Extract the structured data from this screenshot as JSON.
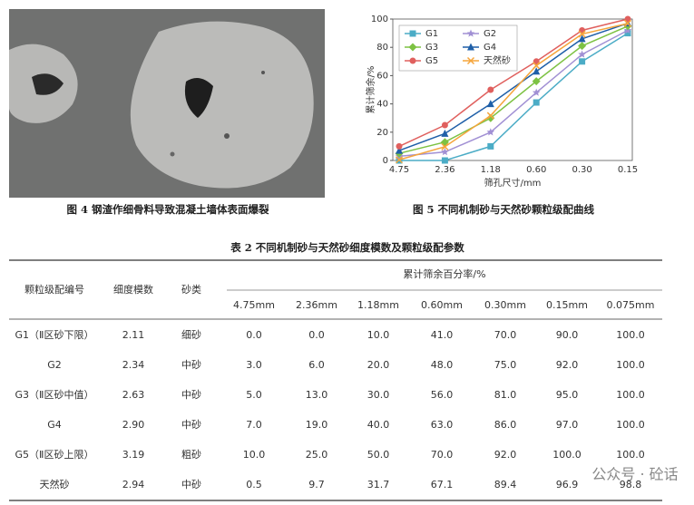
{
  "figure4": {
    "caption": "图 4  钢渣作细骨料导致混凝土墙体表面爆裂"
  },
  "chart_data": {
    "type": "line",
    "caption": "图 5  不同机制砂与天然砂颗粒级配曲线",
    "x_label": "筛孔尺寸/mm",
    "y_label": "累计筛余/%",
    "categories": [
      "4.75",
      "2.36",
      "1.18",
      "0.60",
      "0.30",
      "0.15"
    ],
    "ylim": [
      0,
      100
    ],
    "yticks": [
      0,
      20,
      40,
      60,
      80,
      100
    ],
    "legend": "upper-left",
    "series": [
      {
        "name": "G1",
        "color": "#4bacc6",
        "marker": "square",
        "values": [
          0,
          0,
          10,
          41,
          70,
          90
        ]
      },
      {
        "name": "G2",
        "color": "#a190d4",
        "marker": "star",
        "values": [
          3,
          6,
          20,
          48,
          75,
          92
        ]
      },
      {
        "name": "G3",
        "color": "#7dc243",
        "marker": "diamond",
        "values": [
          5,
          13,
          30,
          56,
          81,
          95
        ]
      },
      {
        "name": "G4",
        "color": "#1f5fa8",
        "marker": "triangle",
        "values": [
          7,
          19,
          40,
          63,
          86,
          97
        ]
      },
      {
        "name": "G5",
        "color": "#e0605e",
        "marker": "circle",
        "values": [
          10,
          25,
          50,
          70,
          92,
          100
        ]
      },
      {
        "name": "天然砂",
        "color": "#f5a53c",
        "marker": "x",
        "values": [
          0.5,
          9.7,
          31.7,
          67.1,
          89.4,
          96.9
        ]
      }
    ]
  },
  "table": {
    "title": "表 2  不同机制砂与天然砂细度模数及颗粒级配参数",
    "headers": {
      "id": "颗粒级配编号",
      "fm": "细度模数",
      "kind": "砂类",
      "group": "累计筛余百分率/%",
      "sieves": [
        "4.75mm",
        "2.36mm",
        "1.18mm",
        "0.60mm",
        "0.30mm",
        "0.15mm",
        "0.075mm"
      ]
    },
    "rows": [
      [
        "G1（Ⅱ区砂下限）",
        "2.11",
        "细砂",
        "0.0",
        "0.0",
        "10.0",
        "41.0",
        "70.0",
        "90.0",
        "100.0"
      ],
      [
        "G2",
        "2.34",
        "中砂",
        "3.0",
        "6.0",
        "20.0",
        "48.0",
        "75.0",
        "92.0",
        "100.0"
      ],
      [
        "G3（Ⅱ区砂中值）",
        "2.63",
        "中砂",
        "5.0",
        "13.0",
        "30.0",
        "56.0",
        "81.0",
        "95.0",
        "100.0"
      ],
      [
        "G4",
        "2.90",
        "中砂",
        "7.0",
        "19.0",
        "40.0",
        "63.0",
        "86.0",
        "97.0",
        "100.0"
      ],
      [
        "G5（Ⅱ区砂上限）",
        "3.19",
        "粗砂",
        "10.0",
        "25.0",
        "50.0",
        "70.0",
        "92.0",
        "100.0",
        "100.0"
      ],
      [
        "天然砂",
        "2.94",
        "中砂",
        "0.5",
        "9.7",
        "31.7",
        "67.1",
        "89.4",
        "96.9",
        "98.8"
      ]
    ]
  },
  "watermark": "公众号 · 砼话"
}
